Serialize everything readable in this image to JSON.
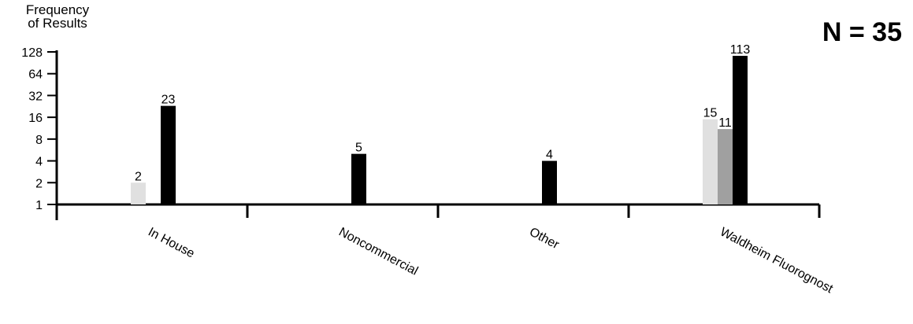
{
  "chart_data": {
    "type": "bar",
    "yscale": "log2",
    "ylabel_lines": [
      "Frequency",
      "of Results"
    ],
    "annotation": "N = 35",
    "categories": [
      "In House",
      "Noncommercial",
      "Other",
      "Waldheim Fluorognost"
    ],
    "yticks": [
      1,
      2,
      4,
      8,
      16,
      32,
      64,
      128
    ],
    "ylim": [
      1,
      128
    ],
    "grid": false,
    "legend": "none",
    "series": [
      {
        "color": "#e0e0e0",
        "values": [
          2,
          null,
          null,
          15
        ]
      },
      {
        "color": "#a0a0a0",
        "values": [
          null,
          null,
          null,
          11
        ]
      },
      {
        "color": "#000000",
        "values": [
          23,
          5,
          4,
          113
        ]
      }
    ]
  }
}
